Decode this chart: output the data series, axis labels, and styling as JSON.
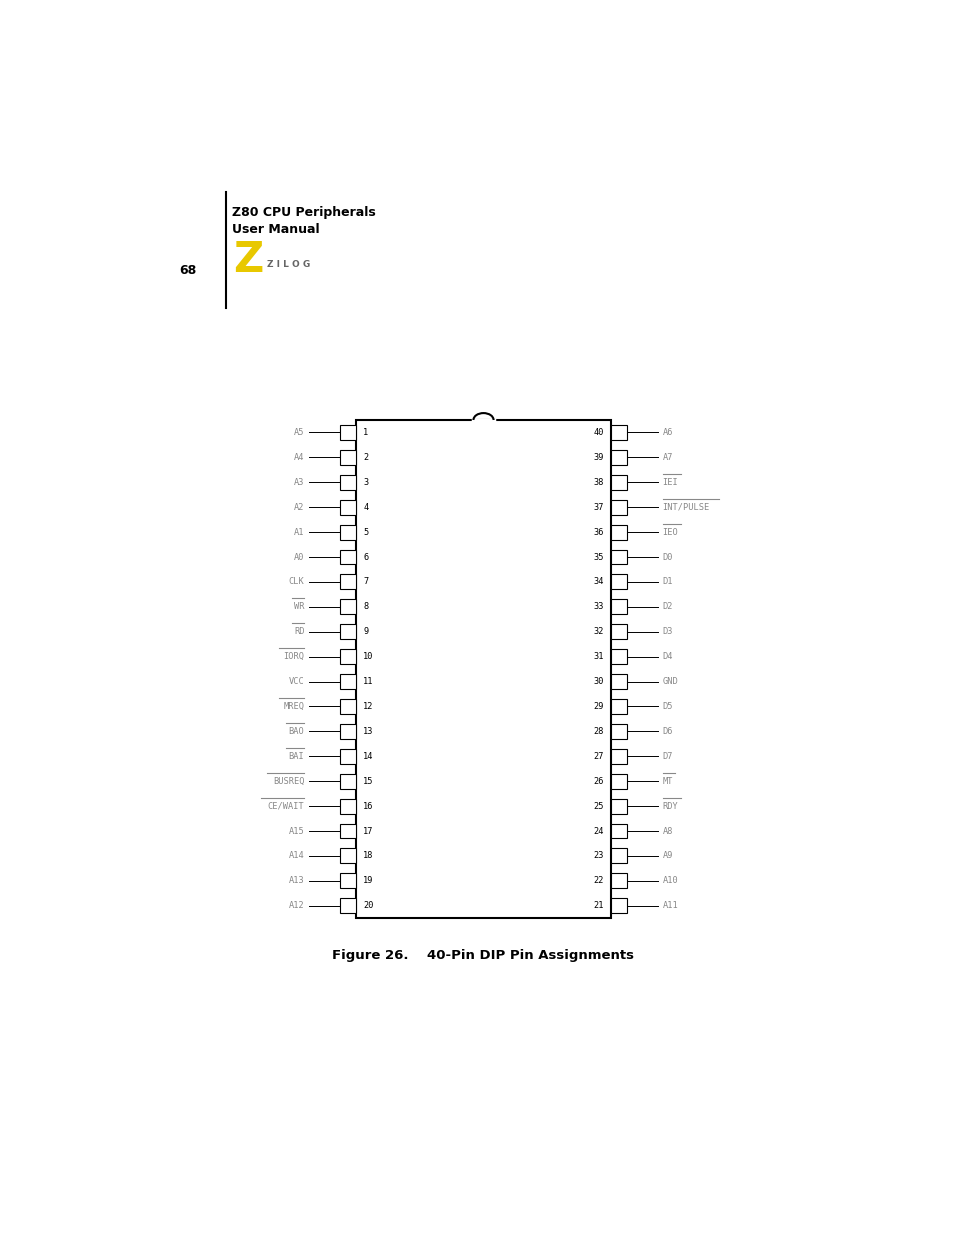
{
  "title_line1": "Z80 CPU Peripherals",
  "title_line2": "User Manual",
  "page_number": "68",
  "caption": "Figure 26.    40-Pin DIP Pin Assignments",
  "left_pins": [
    {
      "num": 1,
      "name": "A5",
      "overline": false
    },
    {
      "num": 2,
      "name": "A4",
      "overline": false
    },
    {
      "num": 3,
      "name": "A3",
      "overline": false
    },
    {
      "num": 4,
      "name": "A2",
      "overline": false
    },
    {
      "num": 5,
      "name": "A1",
      "overline": false
    },
    {
      "num": 6,
      "name": "A0",
      "overline": false
    },
    {
      "num": 7,
      "name": "CLK",
      "overline": false
    },
    {
      "num": 8,
      "name": "WR",
      "overline": true
    },
    {
      "num": 9,
      "name": "RD",
      "overline": true
    },
    {
      "num": 10,
      "name": "IORQ",
      "overline": true
    },
    {
      "num": 11,
      "name": "VCC",
      "overline": false
    },
    {
      "num": 12,
      "name": "MREQ",
      "overline": true
    },
    {
      "num": 13,
      "name": "BAO",
      "overline": true
    },
    {
      "num": 14,
      "name": "BAI",
      "overline": true
    },
    {
      "num": 15,
      "name": "BUSREQ",
      "overline": true
    },
    {
      "num": 16,
      "name": "CE/WAIT",
      "overline": true
    },
    {
      "num": 17,
      "name": "A15",
      "overline": false
    },
    {
      "num": 18,
      "name": "A14",
      "overline": false
    },
    {
      "num": 19,
      "name": "A13",
      "overline": false
    },
    {
      "num": 20,
      "name": "A12",
      "overline": false
    }
  ],
  "right_pins": [
    {
      "num": 40,
      "name": "A6",
      "overline": false
    },
    {
      "num": 39,
      "name": "A7",
      "overline": false
    },
    {
      "num": 38,
      "name": "IEI",
      "overline": true
    },
    {
      "num": 37,
      "name": "INT/PULSE",
      "overline": true
    },
    {
      "num": 36,
      "name": "IEO",
      "overline": true
    },
    {
      "num": 35,
      "name": "D0",
      "overline": false
    },
    {
      "num": 34,
      "name": "D1",
      "overline": false
    },
    {
      "num": 33,
      "name": "D2",
      "overline": false
    },
    {
      "num": 32,
      "name": "D3",
      "overline": false
    },
    {
      "num": 31,
      "name": "D4",
      "overline": false
    },
    {
      "num": 30,
      "name": "GND",
      "overline": false
    },
    {
      "num": 29,
      "name": "D5",
      "overline": false
    },
    {
      "num": 28,
      "name": "D6",
      "overline": false
    },
    {
      "num": 27,
      "name": "D7",
      "overline": false
    },
    {
      "num": 26,
      "name": "MT",
      "overline": true
    },
    {
      "num": 25,
      "name": "RDY",
      "overline": true
    },
    {
      "num": 24,
      "name": "A8",
      "overline": false
    },
    {
      "num": 23,
      "name": "A9",
      "overline": false
    },
    {
      "num": 22,
      "name": "A10",
      "overline": false
    },
    {
      "num": 21,
      "name": "A11",
      "overline": false
    }
  ],
  "chip_color": "#ffffff",
  "chip_border": "#000000",
  "background_color": "#ffffff",
  "text_color": "#000000",
  "label_color": "#888888",
  "number_color": "#000000",
  "zilog_yellow": "#E8C800",
  "zilog_text_color": "#666666"
}
